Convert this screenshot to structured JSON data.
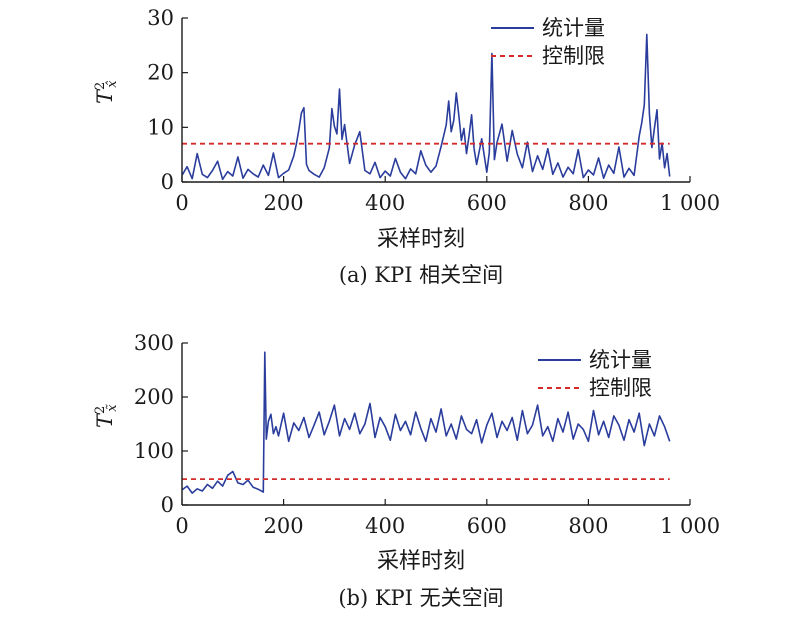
{
  "colors": {
    "series": "#2b3d9c",
    "limit": "#d42a2a",
    "axis": "#1a1a1a"
  },
  "chart_data": [
    {
      "type": "line",
      "caption": "(a) KPI 相关空间",
      "xlabel": "采样时刻",
      "ylabel_main": "T",
      "ylabel_sup": "2",
      "ylabel_sub": "x̂",
      "xlim": [
        0,
        1000
      ],
      "ylim": [
        0,
        30
      ],
      "xticks": [
        0,
        200,
        400,
        600,
        800,
        1000
      ],
      "xtick_labels": [
        "0",
        "200",
        "400",
        "600",
        "800",
        "1 000"
      ],
      "yticks": [
        0,
        10,
        20,
        30
      ],
      "ytick_labels": [
        "0",
        "10",
        "20",
        "30"
      ],
      "legend_position": "top-right",
      "series": [
        {
          "name": "统计量",
          "style": "solid",
          "x": [
            0,
            10,
            20,
            30,
            40,
            50,
            60,
            70,
            80,
            90,
            100,
            110,
            120,
            130,
            140,
            150,
            160,
            170,
            180,
            190,
            200,
            210,
            220,
            225,
            230,
            235,
            240,
            245,
            250,
            260,
            270,
            280,
            290,
            295,
            300,
            305,
            310,
            315,
            320,
            330,
            340,
            350,
            360,
            370,
            380,
            390,
            400,
            410,
            420,
            430,
            440,
            450,
            460,
            470,
            480,
            490,
            500,
            510,
            520,
            525,
            530,
            535,
            540,
            545,
            550,
            555,
            560,
            565,
            570,
            575,
            580,
            590,
            600,
            605,
            610,
            615,
            620,
            630,
            640,
            650,
            660,
            670,
            680,
            690,
            700,
            710,
            720,
            730,
            740,
            750,
            760,
            770,
            780,
            790,
            800,
            810,
            820,
            830,
            840,
            850,
            860,
            870,
            880,
            890,
            900,
            905,
            910,
            915,
            920,
            925,
            930,
            935,
            940,
            945,
            950,
            955,
            960
          ],
          "y": [
            1.2,
            2.8,
            0.6,
            5.2,
            1.4,
            0.8,
            2.1,
            3.8,
            0.5,
            1.9,
            1.1,
            4.6,
            0.7,
            2.3,
            1.5,
            0.9,
            3.1,
            1.2,
            5.3,
            0.8,
            1.6,
            2.2,
            4.8,
            6.9,
            9.5,
            12.6,
            13.6,
            3.2,
            2.1,
            1.4,
            0.9,
            2.6,
            6.2,
            13.4,
            10.2,
            8.8,
            17.0,
            7.8,
            10.5,
            3.4,
            6.8,
            9.2,
            2.1,
            1.5,
            3.6,
            0.8,
            2.0,
            1.1,
            4.3,
            1.8,
            0.6,
            2.4,
            1.5,
            5.7,
            3.1,
            1.8,
            2.9,
            6.5,
            10.4,
            14.8,
            9.2,
            11.3,
            16.3,
            12.1,
            7.6,
            9.8,
            5.2,
            8.4,
            12.3,
            6.1,
            3.2,
            7.9,
            1.8,
            5.4,
            23.5,
            4.1,
            7.2,
            10.6,
            3.8,
            9.4,
            5.1,
            2.6,
            7.3,
            1.9,
            4.8,
            2.3,
            6.1,
            1.4,
            3.5,
            0.9,
            2.7,
            1.5,
            5.9,
            0.8,
            2.2,
            1.3,
            4.4,
            0.7,
            3.1,
            1.6,
            6.4,
            0.9,
            2.5,
            1.2,
            8.4,
            10.8,
            14.1,
            27.0,
            12.5,
            6.3,
            9.8,
            13.2,
            4.2,
            7.1,
            2.6,
            5.2,
            1.0
          ]
        },
        {
          "name": "控制限",
          "style": "dashed",
          "x": [
            0,
            960
          ],
          "y": [
            7.0,
            7.0
          ]
        }
      ]
    },
    {
      "type": "line",
      "caption": "(b) KPI 无关空间",
      "xlabel": "采样时刻",
      "ylabel_main": "T",
      "ylabel_sup": "2",
      "ylabel_sub": "x̃",
      "xlim": [
        0,
        1000
      ],
      "ylim": [
        0,
        300
      ],
      "xticks": [
        0,
        200,
        400,
        600,
        800,
        1000
      ],
      "xtick_labels": [
        "0",
        "200",
        "400",
        "600",
        "800",
        "1 000"
      ],
      "yticks": [
        0,
        100,
        200,
        300
      ],
      "ytick_labels": [
        "0",
        "100",
        "200",
        "300"
      ],
      "legend_position": "top-right",
      "series": [
        {
          "name": "统计量",
          "style": "solid",
          "x": [
            0,
            10,
            20,
            30,
            40,
            50,
            60,
            70,
            80,
            90,
            100,
            110,
            120,
            130,
            140,
            150,
            160,
            163,
            166,
            170,
            175,
            180,
            185,
            190,
            200,
            210,
            220,
            230,
            240,
            250,
            260,
            270,
            280,
            290,
            300,
            310,
            320,
            330,
            340,
            350,
            360,
            370,
            380,
            390,
            400,
            410,
            420,
            430,
            440,
            450,
            460,
            470,
            480,
            490,
            500,
            510,
            520,
            530,
            540,
            550,
            560,
            570,
            580,
            590,
            600,
            610,
            620,
            630,
            640,
            650,
            660,
            670,
            680,
            690,
            700,
            710,
            720,
            730,
            740,
            750,
            760,
            770,
            780,
            790,
            800,
            810,
            820,
            830,
            840,
            850,
            860,
            870,
            880,
            890,
            900,
            910,
            920,
            930,
            940,
            950,
            960
          ],
          "y": [
            28,
            35,
            22,
            30,
            26,
            38,
            31,
            44,
            35,
            55,
            62,
            41,
            38,
            46,
            33,
            29,
            24,
            283,
            122,
            155,
            168,
            132,
            145,
            128,
            170,
            118,
            152,
            138,
            162,
            125,
            148,
            172,
            130,
            155,
            185,
            128,
            160,
            140,
            170,
            132,
            150,
            188,
            125,
            162,
            145,
            120,
            168,
            138,
            155,
            130,
            172,
            142,
            118,
            160,
            135,
            178,
            128,
            150,
            122,
            165,
            140,
            132,
            158,
            115,
            148,
            170,
            125,
            155,
            138,
            162,
            120,
            175,
            132,
            148,
            185,
            128,
            145,
            118,
            160,
            135,
            172,
            122,
            150,
            140,
            118,
            175,
            130,
            155,
            125,
            165,
            148,
            120,
            158,
            135,
            170,
            110,
            150,
            128,
            165,
            145,
            118
          ]
        },
        {
          "name": "控制限",
          "style": "dashed",
          "x": [
            0,
            960
          ],
          "y": [
            48,
            48
          ]
        }
      ]
    }
  ]
}
